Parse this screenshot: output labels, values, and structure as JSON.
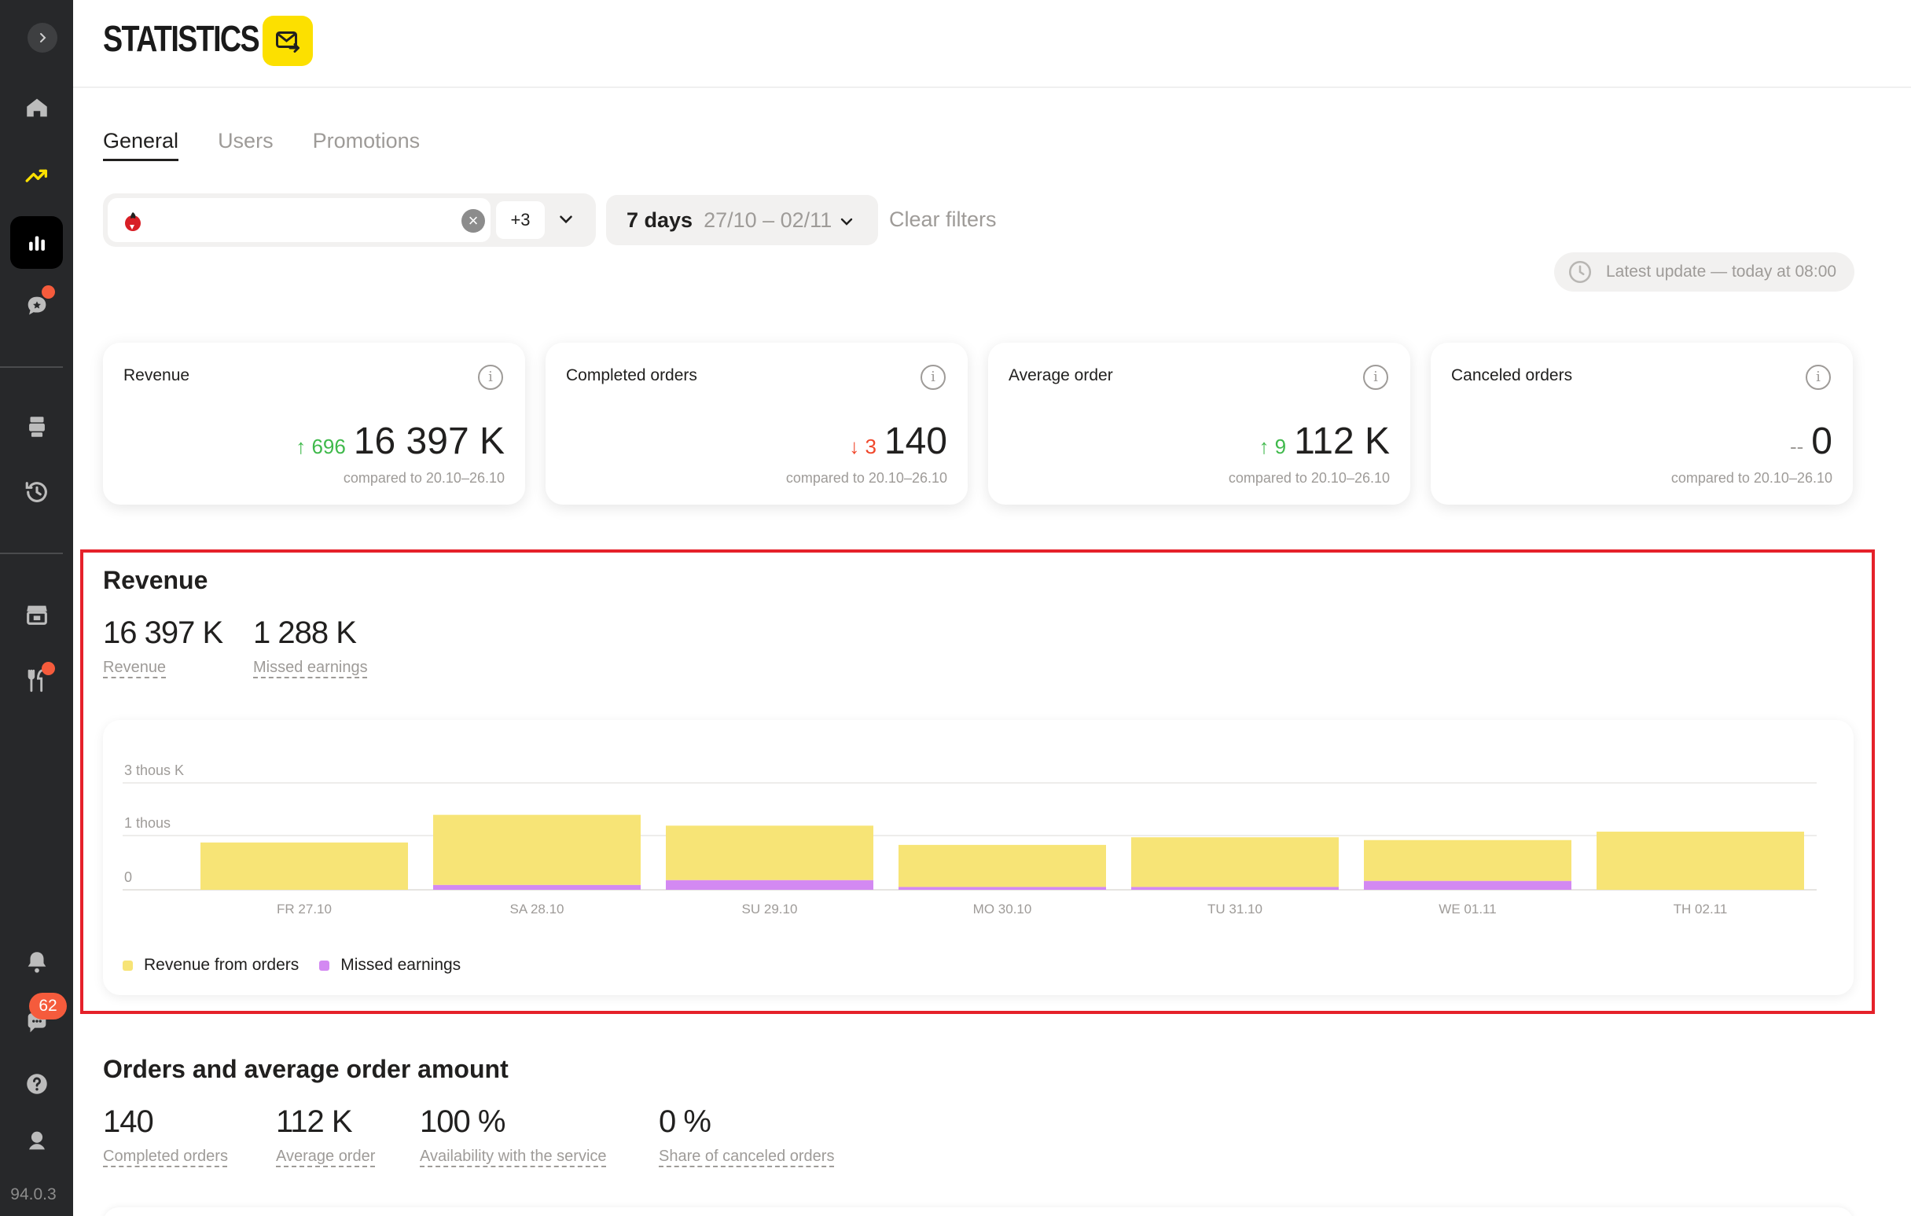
{
  "sidebar": {
    "version": "94.0.3",
    "chat_badge": "62",
    "items": [
      {
        "icon": "home-icon"
      },
      {
        "icon": "trending-icon"
      },
      {
        "icon": "bar-chart-icon"
      },
      {
        "icon": "chat-star-icon"
      },
      {
        "icon": "printer-icon"
      },
      {
        "icon": "history-icon"
      },
      {
        "icon": "store-icon"
      },
      {
        "icon": "fork-knife-icon"
      },
      {
        "icon": "bell-icon"
      },
      {
        "icon": "chat-icon"
      },
      {
        "icon": "help-icon"
      },
      {
        "icon": "profile-icon"
      }
    ]
  },
  "header": {
    "title": "STATISTICS"
  },
  "tabs": [
    {
      "label": "General",
      "active": true
    },
    {
      "label": "Users",
      "active": false
    },
    {
      "label": "Promotions",
      "active": false
    }
  ],
  "filters": {
    "restaurant_count": "+3",
    "period_days": "7 days",
    "period_range": "27/10 – 02/11",
    "clear_label": "Clear filters",
    "latest_update": "Latest update — today at 08:00"
  },
  "kpis": [
    {
      "title": "Revenue",
      "delta": "↑ 696",
      "trend": "up",
      "value": "16 397 K",
      "compare": "compared to 20.10–26.10"
    },
    {
      "title": "Completed orders",
      "delta": "↓ 3",
      "trend": "down",
      "value": "140",
      "compare": "compared to 20.10–26.10"
    },
    {
      "title": "Average order",
      "delta": "↑ 9",
      "trend": "up",
      "value": "112 K",
      "compare": "compared to 20.10–26.10"
    },
    {
      "title": "Canceled orders",
      "delta": "--",
      "trend": "flat",
      "value": "0",
      "compare": "compared to 20.10–26.10"
    }
  ],
  "revenue_section": {
    "title": "Revenue",
    "metrics": [
      {
        "value": "16 397 K",
        "label": "Revenue"
      },
      {
        "value": "1 288 K",
        "label": "Missed earnings"
      }
    ]
  },
  "chart_data": {
    "type": "bar",
    "stacked": true,
    "categories": [
      "FR 27.10",
      "SA 28.10",
      "SU 29.10",
      "MO 30.10",
      "TU 31.10",
      "WE 01.11",
      "TH 02.11"
    ],
    "y_tick_labels": [
      "0",
      "1 thous",
      "3 thous K"
    ],
    "series": [
      {
        "name": "Revenue from orders",
        "color": "#f7e476",
        "values": [
          1.18,
          1.75,
          1.36,
          1.05,
          1.24,
          1.02,
          1.45
        ]
      },
      {
        "name": "Missed earnings",
        "color": "#d389f2",
        "values": [
          0.0,
          0.12,
          0.24,
          0.07,
          0.07,
          0.22,
          0.0
        ]
      }
    ],
    "ylim": [
      0,
      2.0
    ],
    "grid": true
  },
  "orders_section": {
    "title": "Orders and average order amount",
    "metrics": [
      {
        "value": "140",
        "label": "Completed orders"
      },
      {
        "value": "112 K",
        "label": "Average order"
      },
      {
        "value": "100 %",
        "label": "Availability with the service"
      },
      {
        "value": "0 %",
        "label": "Share of canceled orders"
      }
    ]
  },
  "colors": {
    "accent": "#fce000",
    "sidebar_bg": "#27282a",
    "highlight": "#e5212a",
    "up": "#3fb94b",
    "down": "#f0472b"
  }
}
